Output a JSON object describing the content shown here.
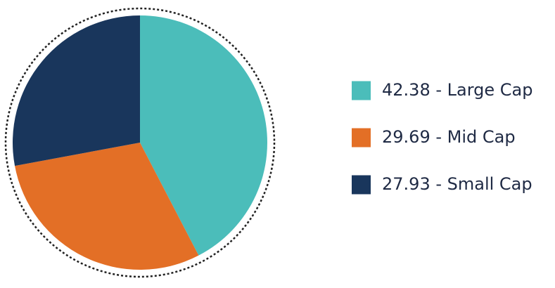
{
  "chart_data": {
    "type": "pie",
    "categories": [
      "42.38 - Large Cap",
      "29.69 - Mid Cap",
      "27.93 - Small Cap"
    ],
    "values": [
      42.38,
      29.69,
      27.93
    ],
    "colors": [
      "#4bbdba",
      "#e36f26",
      "#19365c"
    ]
  }
}
